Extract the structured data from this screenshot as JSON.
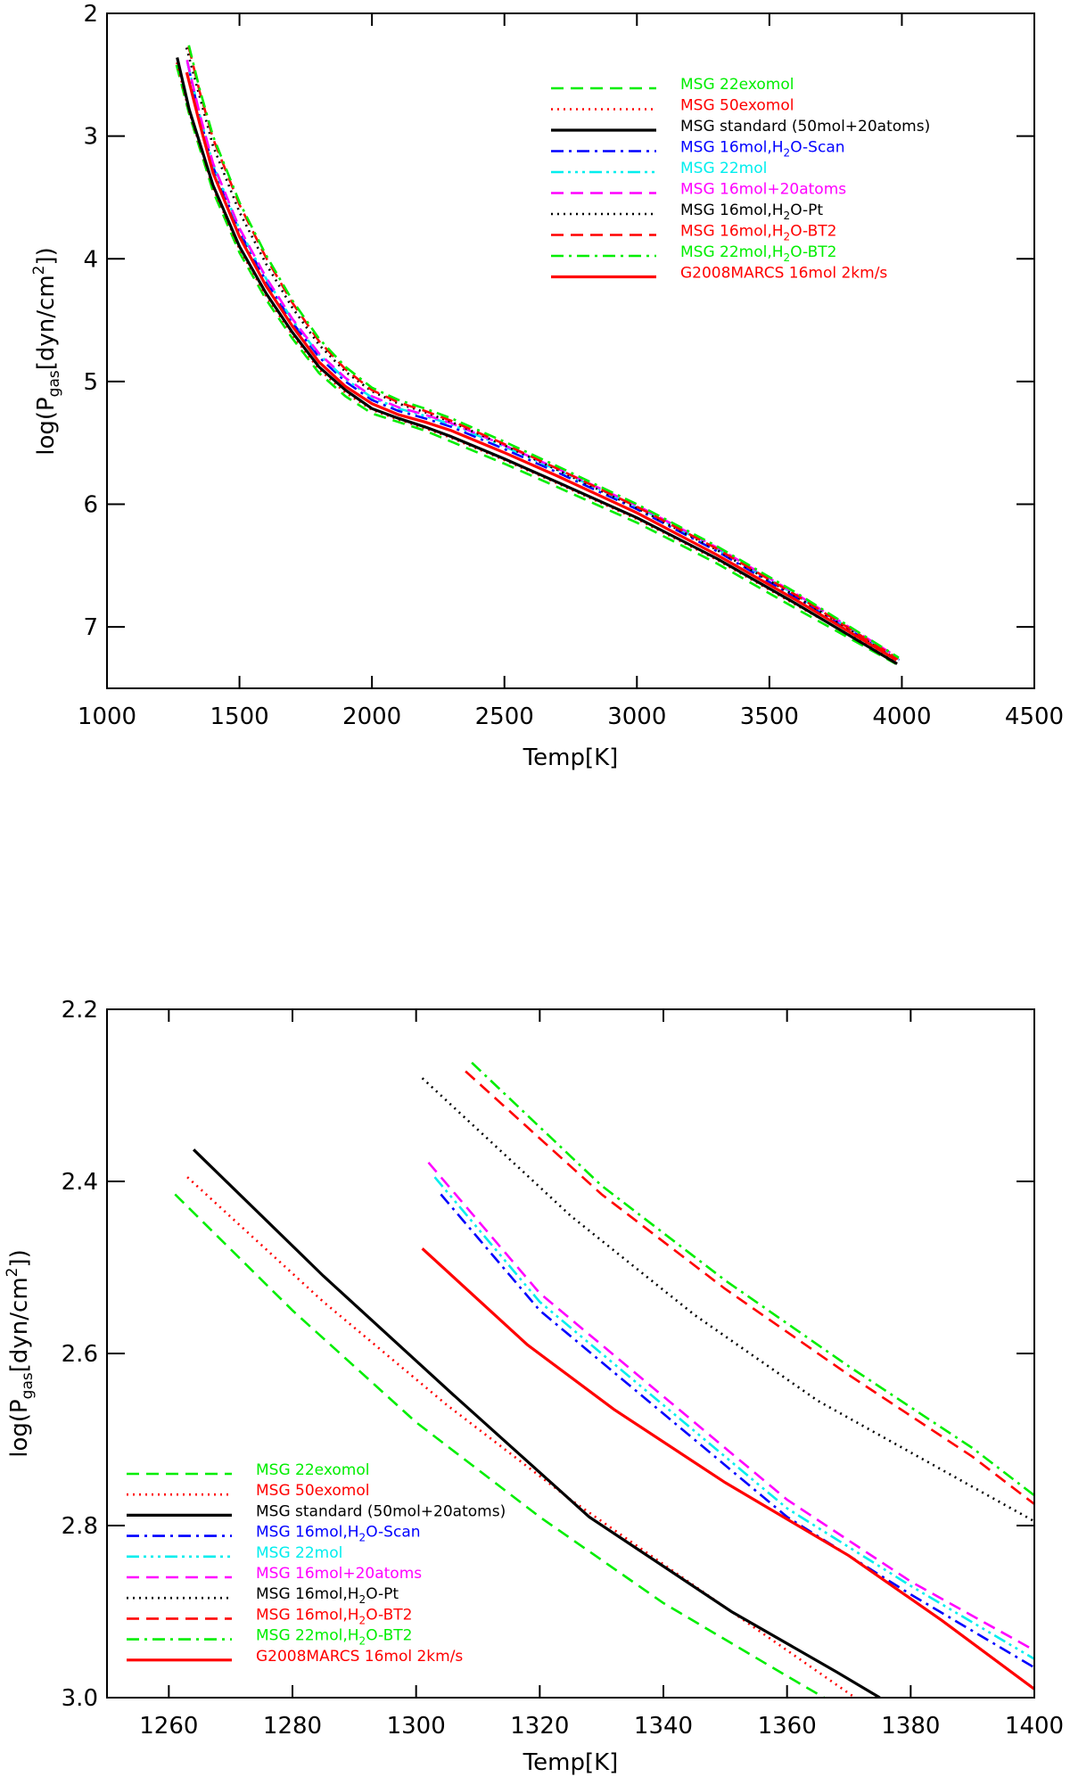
{
  "chart_data": [
    {
      "type": "line",
      "xlabel": "Temp[K]",
      "ylabel": "log(Pgas[dyn/cm2])",
      "xlim": [
        1000,
        4500
      ],
      "ylim": [
        2,
        7.5
      ],
      "y_inverted": true,
      "xticks": [
        "1000",
        "1500",
        "2000",
        "2500",
        "3000",
        "3500",
        "4000",
        "4500"
      ],
      "yticks": [
        "2",
        "3",
        "4",
        "5",
        "6",
        "7"
      ],
      "legend_position": "top-right",
      "series": [
        {
          "name": "MSG 22exomol",
          "color": "#00ee00",
          "dash": "dashed",
          "x": [
            1262,
            1310,
            1400,
            1500,
            1600,
            1700,
            1800,
            1900,
            2000,
            2100,
            2200,
            2300,
            2500,
            2700,
            3000,
            3300,
            3600,
            3977
          ],
          "y": [
            2.42,
            2.82,
            3.45,
            3.95,
            4.33,
            4.65,
            4.93,
            5.12,
            5.26,
            5.33,
            5.4,
            5.49,
            5.67,
            5.86,
            6.15,
            6.48,
            6.85,
            7.3
          ]
        },
        {
          "name": "MSG 50exomol",
          "color": "#ff0000",
          "dash": "dotted",
          "x": [
            1264,
            1310,
            1400,
            1500,
            1600,
            1700,
            1800,
            1900,
            2000,
            2100,
            2200,
            2300,
            2500,
            2700,
            3000,
            3300,
            3600,
            3980
          ],
          "y": [
            2.4,
            2.8,
            3.42,
            3.92,
            4.3,
            4.62,
            4.9,
            5.09,
            5.23,
            5.31,
            5.38,
            5.46,
            5.64,
            5.83,
            6.12,
            6.45,
            6.82,
            7.28
          ]
        },
        {
          "name": "MSG standard (50mol+20atoms)",
          "color": "#000000",
          "dash": "solid",
          "x": [
            1265,
            1310,
            1400,
            1500,
            1600,
            1700,
            1800,
            1900,
            2000,
            2100,
            2200,
            2300,
            2500,
            2700,
            3000,
            3300,
            3600,
            3982
          ],
          "y": [
            2.36,
            2.78,
            3.4,
            3.9,
            4.28,
            4.6,
            4.88,
            5.07,
            5.22,
            5.3,
            5.37,
            5.45,
            5.63,
            5.82,
            6.11,
            6.44,
            6.81,
            7.3
          ]
        },
        {
          "name": "MSG 16mol,H2O-Scan",
          "color": "#0000ff",
          "dash": "dashdot",
          "x": [
            1305,
            1350,
            1400,
            1500,
            1600,
            1700,
            1800,
            1900,
            2000,
            2100,
            2200,
            2300,
            2500,
            2700,
            3000,
            3300,
            3600,
            3990
          ],
          "y": [
            2.41,
            2.85,
            3.25,
            3.78,
            4.18,
            4.52,
            4.8,
            5.0,
            5.15,
            5.24,
            5.3,
            5.37,
            5.55,
            5.74,
            6.04,
            6.38,
            6.76,
            7.27
          ]
        },
        {
          "name": "MSG 22mol",
          "color": "#00eeee",
          "dash": "dashdotdotdot",
          "x": [
            1303,
            1350,
            1400,
            1500,
            1600,
            1700,
            1800,
            1900,
            2000,
            2100,
            2200,
            2300,
            2500,
            2700,
            3000,
            3300,
            3600,
            3988
          ],
          "y": [
            2.39,
            2.83,
            3.23,
            3.76,
            4.16,
            4.5,
            4.78,
            4.98,
            5.13,
            5.22,
            5.28,
            5.35,
            5.53,
            5.72,
            6.02,
            6.36,
            6.74,
            7.26
          ]
        },
        {
          "name": "MSG 16mol+20atoms",
          "color": "#ff00ff",
          "dash": "dashed",
          "x": [
            1302,
            1350,
            1400,
            1500,
            1600,
            1700,
            1800,
            1900,
            2000,
            2100,
            2200,
            2300,
            2500,
            2700,
            3000,
            3300,
            3600,
            3986
          ],
          "y": [
            2.38,
            2.82,
            3.22,
            3.75,
            4.15,
            4.49,
            4.77,
            4.97,
            5.12,
            5.21,
            5.27,
            5.34,
            5.52,
            5.71,
            6.01,
            6.35,
            6.73,
            7.25
          ]
        },
        {
          "name": "MSG 16mol,H2O-Pt",
          "color": "#000000",
          "dash": "dotted",
          "x": [
            1300,
            1350,
            1400,
            1500,
            1600,
            1700,
            1800,
            1900,
            2000,
            2100,
            2200,
            2300,
            2500,
            2700,
            3000,
            3300,
            3600,
            3984
          ],
          "y": [
            2.28,
            2.68,
            3.08,
            3.62,
            4.04,
            4.4,
            4.7,
            4.92,
            5.08,
            5.18,
            5.25,
            5.33,
            5.52,
            5.72,
            6.03,
            6.37,
            6.75,
            7.27
          ]
        },
        {
          "name": "MSG 16mol,H2O-BT2",
          "color": "#ff0000",
          "dash": "dashed",
          "x": [
            1308,
            1350,
            1400,
            1500,
            1600,
            1700,
            1800,
            1900,
            2000,
            2100,
            2200,
            2300,
            2500,
            2700,
            3000,
            3300,
            3600,
            3986
          ],
          "y": [
            2.27,
            2.64,
            3.02,
            3.56,
            3.99,
            4.36,
            4.67,
            4.9,
            5.07,
            5.17,
            5.24,
            5.32,
            5.51,
            5.71,
            6.02,
            6.36,
            6.74,
            7.26
          ]
        },
        {
          "name": "MSG 22mol,H2O-BT2",
          "color": "#00ee00",
          "dash": "dashdot",
          "x": [
            1309,
            1350,
            1400,
            1500,
            1600,
            1700,
            1800,
            1900,
            2000,
            2100,
            2200,
            2300,
            2500,
            2700,
            3000,
            3300,
            3600,
            3988
          ],
          "y": [
            2.26,
            2.62,
            3.0,
            3.54,
            3.97,
            4.34,
            4.65,
            4.88,
            5.05,
            5.15,
            5.22,
            5.3,
            5.49,
            5.69,
            6.0,
            6.34,
            6.72,
            7.25
          ]
        },
        {
          "name": "G2008MARCS 16mol 2km/s",
          "color": "#ff0000",
          "dash": "solid",
          "x": [
            1301,
            1350,
            1400,
            1500,
            1600,
            1700,
            1800,
            1900,
            2000,
            2100,
            2200,
            2300,
            2500,
            2700,
            3000,
            3300,
            3600,
            3980
          ],
          "y": [
            2.48,
            2.9,
            3.3,
            3.82,
            4.22,
            4.55,
            4.84,
            5.04,
            5.18,
            5.27,
            5.33,
            5.4,
            5.58,
            5.77,
            6.07,
            6.41,
            6.78,
            7.27
          ]
        }
      ]
    },
    {
      "type": "line",
      "xlabel": "Temp[K]",
      "ylabel": "log(Pgas[dyn/cm2])",
      "xlim": [
        1250,
        1400
      ],
      "ylim": [
        2.2,
        3.0
      ],
      "y_inverted": true,
      "xticks": [
        "1260",
        "1280",
        "1300",
        "1320",
        "1340",
        "1360",
        "1380",
        "1400"
      ],
      "yticks": [
        "2.2",
        "2.4",
        "2.6",
        "2.8",
        "3.0"
      ],
      "legend_position": "bottom-left",
      "series": [
        {
          "name": "MSG 22exomol",
          "color": "#00ee00",
          "dash": "dashed",
          "x": [
            1261,
            1280,
            1300,
            1320,
            1340,
            1360,
            1366
          ],
          "y": [
            2.415,
            2.55,
            2.68,
            2.79,
            2.89,
            2.975,
            3.0
          ]
        },
        {
          "name": "MSG 50exomol",
          "color": "#ff0000",
          "dash": "dotted",
          "x": [
            1263,
            1285,
            1305,
            1325,
            1345,
            1365,
            1371
          ],
          "y": [
            2.395,
            2.54,
            2.66,
            2.77,
            2.87,
            2.97,
            3.0
          ]
        },
        {
          "name": "MSG standard (50mol+20atoms)",
          "color": "#000000",
          "dash": "solid",
          "x": [
            1264,
            1285,
            1306,
            1328,
            1351,
            1368,
            1375
          ],
          "y": [
            2.363,
            2.51,
            2.648,
            2.79,
            2.9,
            2.97,
            3.0
          ]
        },
        {
          "name": "MSG 16mol,H2O-Scan",
          "color": "#0000ff",
          "dash": "dashdot",
          "x": [
            1304,
            1320,
            1340,
            1360,
            1380,
            1400
          ],
          "y": [
            2.415,
            2.55,
            2.67,
            2.79,
            2.88,
            2.965
          ]
        },
        {
          "name": "MSG 22mol",
          "color": "#00eeee",
          "dash": "dashdotdotdot",
          "x": [
            1303,
            1320,
            1340,
            1360,
            1380,
            1400
          ],
          "y": [
            2.395,
            2.54,
            2.66,
            2.78,
            2.87,
            2.955
          ]
        },
        {
          "name": "MSG 16mol+20atoms",
          "color": "#ff00ff",
          "dash": "dashed",
          "x": [
            1302,
            1320,
            1340,
            1360,
            1380,
            1400
          ],
          "y": [
            2.378,
            2.53,
            2.65,
            2.77,
            2.865,
            2.945
          ]
        },
        {
          "name": "MSG 16mol,H2O-Pt",
          "color": "#000000",
          "dash": "dotted",
          "x": [
            1301,
            1325,
            1345,
            1365,
            1385,
            1400
          ],
          "y": [
            2.28,
            2.44,
            2.555,
            2.655,
            2.735,
            2.795
          ]
        },
        {
          "name": "MSG 16mol,H2O-BT2",
          "color": "#ff0000",
          "dash": "dashed",
          "x": [
            1308,
            1330,
            1350,
            1370,
            1390,
            1400
          ],
          "y": [
            2.272,
            2.415,
            2.525,
            2.625,
            2.72,
            2.775
          ]
        },
        {
          "name": "MSG 22mol,H2O-BT2",
          "color": "#00ee00",
          "dash": "dashdot",
          "x": [
            1309,
            1330,
            1350,
            1370,
            1390,
            1400
          ],
          "y": [
            2.262,
            2.405,
            2.515,
            2.615,
            2.71,
            2.765
          ]
        },
        {
          "name": "G2008MARCS 16mol 2km/s",
          "color": "#ff0000",
          "dash": "solid",
          "x": [
            1301,
            1318,
            1332,
            1350,
            1370,
            1385,
            1400
          ],
          "y": [
            2.478,
            2.59,
            2.665,
            2.75,
            2.835,
            2.91,
            2.99
          ]
        }
      ]
    }
  ],
  "legend_names": [
    "MSG 22exomol",
    "MSG 50exomol",
    "MSG standard (50mol+20atoms)",
    "MSG 16mol,H2O-Scan",
    "MSG 22mol",
    "MSG 16mol+20atoms",
    "MSG 16mol,H2O-Pt",
    "MSG 16mol,H2O-BT2",
    "MSG 22mol,H2O-BT2",
    "G2008MARCS 16mol 2km/s"
  ],
  "ylabel_parts": {
    "pre": "log(P",
    "sub": "gas",
    "mid": "[dyn/cm",
    "sup": "2",
    "post": "])"
  },
  "xlabel_text": "Temp[K]"
}
